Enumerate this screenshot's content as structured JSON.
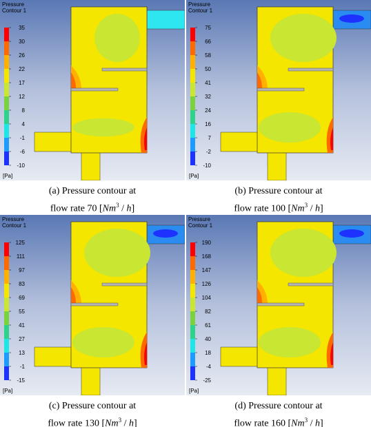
{
  "legend_title": [
    "Pressure",
    "Contour 1"
  ],
  "legend_unit": "[Pa]",
  "legend_colors": [
    "#ff0000",
    "#ff6a00",
    "#ffb000",
    "#f5e600",
    "#c8e632",
    "#7ad23c",
    "#2fd28a",
    "#1ee6e6",
    "#1e9bff",
    "#1e32ff"
  ],
  "caption_unit": {
    "open": "[",
    "base": "Nm",
    "exp": "3",
    "rest": " / ",
    "var": "h",
    "close": "]"
  },
  "panels": [
    {
      "caption_line1": "(a) Pressure contour at",
      "caption_line2": "flow rate 70",
      "ticks": [
        35,
        30,
        26,
        22,
        17,
        12,
        8,
        4,
        -1,
        -6,
        -10
      ]
    },
    {
      "caption_line1": "(b) Pressure contour at",
      "caption_line2": "flow rate 100",
      "ticks": [
        75,
        66,
        58,
        50,
        41,
        32,
        24,
        16,
        7,
        -2,
        -10
      ]
    },
    {
      "caption_line1": "(c) Pressure contour at",
      "caption_line2": "flow rate 130",
      "ticks": [
        125,
        111,
        97,
        83,
        69,
        55,
        41,
        27,
        13,
        -1,
        -15
      ]
    },
    {
      "caption_line1": "(d) Pressure contour at",
      "caption_line2": "flow rate 160",
      "ticks": [
        190,
        168,
        147,
        126,
        104,
        82,
        61,
        40,
        18,
        -4,
        -25
      ]
    }
  ]
}
